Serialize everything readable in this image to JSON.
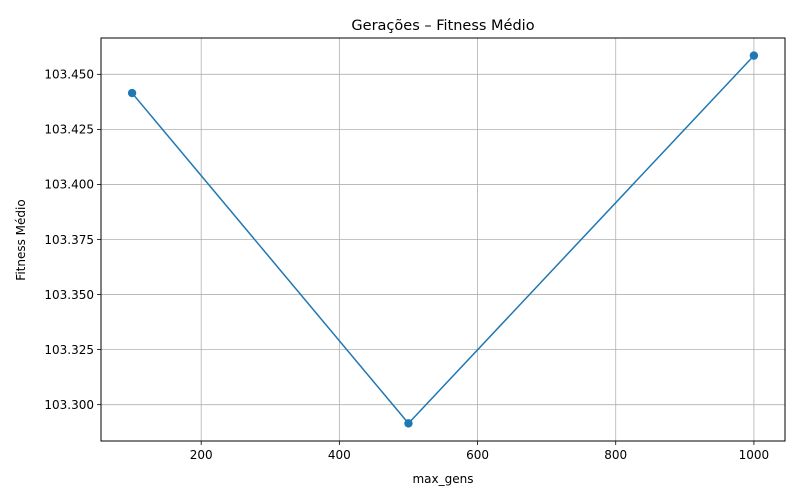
{
  "chart_data": {
    "type": "line",
    "title": "Gerações – Fitness Médio",
    "xlabel": "max_gens",
    "ylabel": "Fitness Médio",
    "x": [
      100,
      500,
      1000
    ],
    "series": [
      {
        "values": [
          103.4415,
          103.2915,
          103.4585
        ],
        "color": "#1f77b4",
        "marker": "circle"
      }
    ],
    "xlim": [
      55,
      1045
    ],
    "ylim": [
      103.2835,
      103.4665
    ],
    "xticks": [
      200,
      400,
      600,
      800,
      1000
    ],
    "xtick_labels": [
      "200",
      "400",
      "600",
      "800",
      "1000"
    ],
    "yticks": [
      103.3,
      103.325,
      103.35,
      103.375,
      103.4,
      103.425,
      103.45
    ],
    "ytick_labels": [
      "103.300",
      "103.325",
      "103.350",
      "103.375",
      "103.400",
      "103.425",
      "103.450"
    ],
    "grid": true,
    "grid_color": "#b0b0b0",
    "legend": "none"
  }
}
